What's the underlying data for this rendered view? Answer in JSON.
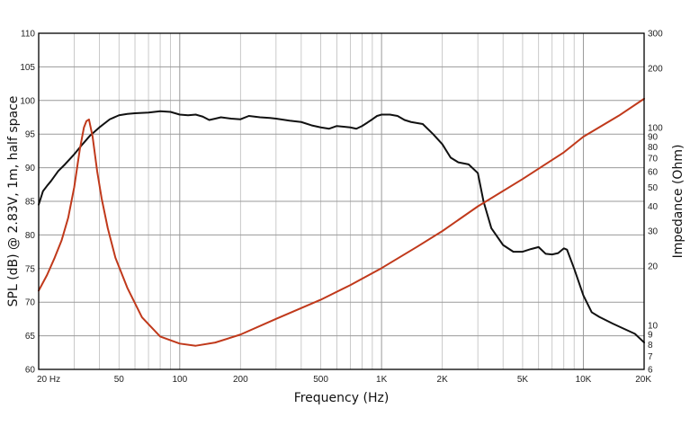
{
  "chart_data": {
    "type": "line",
    "xlabel": "Frequency (Hz)",
    "ylabel": "SPL (dB) @ 2.83V, 1m, half space",
    "y2label": "Impedance (Ohm)",
    "xscale": "log",
    "xlim": [
      20,
      20000
    ],
    "ylim": [
      60,
      110
    ],
    "y2scale": "log",
    "y2lim": [
      6,
      300
    ],
    "grid": true,
    "x_gridlines": [
      20,
      30,
      40,
      50,
      60,
      70,
      80,
      90,
      100,
      200,
      300,
      400,
      500,
      600,
      700,
      800,
      900,
      1000,
      2000,
      3000,
      4000,
      5000,
      6000,
      7000,
      8000,
      9000,
      10000,
      20000
    ],
    "x_ticks": [
      {
        "value": 20,
        "label": "20 Hz"
      },
      {
        "value": 50,
        "label": "50"
      },
      {
        "value": 100,
        "label": "100"
      },
      {
        "value": 200,
        "label": "200"
      },
      {
        "value": 500,
        "label": "500"
      },
      {
        "value": 1000,
        "label": "1K"
      },
      {
        "value": 2000,
        "label": "2K"
      },
      {
        "value": 5000,
        "label": "5K"
      },
      {
        "value": 10000,
        "label": "10K"
      },
      {
        "value": 20000,
        "label": "20K"
      }
    ],
    "y_ticks": [
      {
        "value": 60,
        "label": "60"
      },
      {
        "value": 65,
        "label": "65"
      },
      {
        "value": 70,
        "label": "70"
      },
      {
        "value": 75,
        "label": "75"
      },
      {
        "value": 80,
        "label": "80"
      },
      {
        "value": 85,
        "label": "85"
      },
      {
        "value": 90,
        "label": "90"
      },
      {
        "value": 95,
        "label": "95"
      },
      {
        "value": 100,
        "label": "100"
      },
      {
        "value": 105,
        "label": "105"
      },
      {
        "value": 110,
        "label": "110"
      }
    ],
    "y2_ticks": [
      {
        "value": 6,
        "label": "6"
      },
      {
        "value": 7,
        "label": "7"
      },
      {
        "value": 8,
        "label": "8"
      },
      {
        "value": 9,
        "label": "9"
      },
      {
        "value": 10,
        "label": "10"
      },
      {
        "value": 20,
        "label": "20"
      },
      {
        "value": 30,
        "label": "30"
      },
      {
        "value": 40,
        "label": "40"
      },
      {
        "value": 50,
        "label": "50"
      },
      {
        "value": 60,
        "label": "60"
      },
      {
        "value": 70,
        "label": "70"
      },
      {
        "value": 80,
        "label": "80"
      },
      {
        "value": 90,
        "label": "90"
      },
      {
        "value": 100,
        "label": "100"
      },
      {
        "value": 200,
        "label": "200"
      },
      {
        "value": 300,
        "label": "300"
      }
    ],
    "series": [
      {
        "axis": "left",
        "color": "#111111",
        "points": [
          [
            20,
            84.5
          ],
          [
            21,
            86.5
          ],
          [
            22,
            87.3
          ],
          [
            23,
            88
          ],
          [
            25,
            89.5
          ],
          [
            27,
            90.5
          ],
          [
            30,
            92
          ],
          [
            33,
            93.5
          ],
          [
            36,
            94.8
          ],
          [
            40,
            96
          ],
          [
            45,
            97.2
          ],
          [
            50,
            97.8
          ],
          [
            55,
            98
          ],
          [
            60,
            98.1
          ],
          [
            70,
            98.2
          ],
          [
            80,
            98.4
          ],
          [
            90,
            98.3
          ],
          [
            100,
            97.9
          ],
          [
            110,
            97.8
          ],
          [
            120,
            97.9
          ],
          [
            130,
            97.6
          ],
          [
            140,
            97.1
          ],
          [
            150,
            97.3
          ],
          [
            160,
            97.5
          ],
          [
            180,
            97.3
          ],
          [
            200,
            97.2
          ],
          [
            220,
            97.7
          ],
          [
            250,
            97.5
          ],
          [
            280,
            97.4
          ],
          [
            300,
            97.3
          ],
          [
            350,
            97
          ],
          [
            400,
            96.8
          ],
          [
            450,
            96.3
          ],
          [
            500,
            96
          ],
          [
            550,
            95.8
          ],
          [
            600,
            96.2
          ],
          [
            650,
            96.1
          ],
          [
            700,
            96
          ],
          [
            750,
            95.8
          ],
          [
            800,
            96.2
          ],
          [
            850,
            96.7
          ],
          [
            900,
            97.2
          ],
          [
            950,
            97.7
          ],
          [
            1000,
            97.9
          ],
          [
            1100,
            97.9
          ],
          [
            1200,
            97.7
          ],
          [
            1300,
            97.1
          ],
          [
            1400,
            96.8
          ],
          [
            1600,
            96.5
          ],
          [
            1800,
            95
          ],
          [
            2000,
            93.5
          ],
          [
            2200,
            91.5
          ],
          [
            2400,
            90.8
          ],
          [
            2700,
            90.5
          ],
          [
            3000,
            89.2
          ],
          [
            3200,
            85
          ],
          [
            3500,
            81
          ],
          [
            4000,
            78.5
          ],
          [
            4500,
            77.5
          ],
          [
            5000,
            77.5
          ],
          [
            5500,
            77.9
          ],
          [
            6000,
            78.2
          ],
          [
            6500,
            77.2
          ],
          [
            7000,
            77.1
          ],
          [
            7500,
            77.3
          ],
          [
            8000,
            78
          ],
          [
            8300,
            77.8
          ],
          [
            9000,
            75
          ],
          [
            10000,
            71
          ],
          [
            11000,
            68.5
          ],
          [
            12000,
            67.8
          ],
          [
            14000,
            66.8
          ],
          [
            16000,
            66
          ],
          [
            18000,
            65.3
          ],
          [
            20000,
            64
          ]
        ]
      },
      {
        "axis": "right",
        "color": "#c0391b",
        "points": [
          [
            20,
            15
          ],
          [
            22,
            18
          ],
          [
            24,
            22
          ],
          [
            26,
            27
          ],
          [
            28,
            35
          ],
          [
            30,
            50
          ],
          [
            32,
            78
          ],
          [
            33.5,
            100
          ],
          [
            34.5,
            108
          ],
          [
            35.5,
            110
          ],
          [
            37,
            90
          ],
          [
            39,
            60
          ],
          [
            41,
            44
          ],
          [
            44,
            31
          ],
          [
            48,
            22
          ],
          [
            55,
            15.5
          ],
          [
            65,
            11
          ],
          [
            80,
            8.8
          ],
          [
            100,
            8.1
          ],
          [
            120,
            7.9
          ],
          [
            150,
            8.2
          ],
          [
            200,
            9
          ],
          [
            300,
            10.8
          ],
          [
            500,
            13.5
          ],
          [
            700,
            16
          ],
          [
            1000,
            19.5
          ],
          [
            1500,
            25
          ],
          [
            2000,
            30
          ],
          [
            3000,
            40
          ],
          [
            5000,
            55
          ],
          [
            8000,
            75
          ],
          [
            10000,
            90
          ],
          [
            15000,
            115
          ],
          [
            20000,
            140
          ]
        ]
      }
    ]
  }
}
